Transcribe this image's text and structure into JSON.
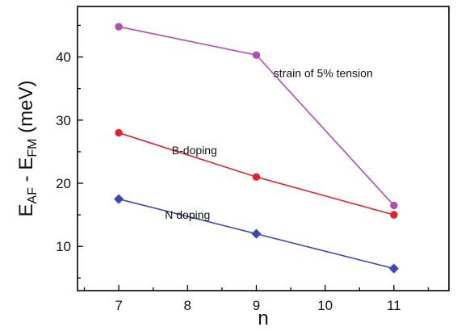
{
  "chart_data": {
    "type": "line",
    "xlabel": "n",
    "ylabel": {
      "base": "E",
      "sub1": "AF",
      "minus": " - E",
      "sub2": "FM",
      "unit": " (meV)"
    },
    "xlim": [
      6.4,
      11.8
    ],
    "ylim": [
      3,
      48
    ],
    "xticks": [
      7,
      8,
      9,
      10,
      11
    ],
    "yticks": [
      10,
      20,
      30,
      40
    ],
    "grid": false,
    "series": [
      {
        "label": "strain of 5% tension",
        "color": "#b44cb4",
        "marker": "circle",
        "x": [
          7,
          9,
          11
        ],
        "y": [
          44.8,
          40.3,
          16.5
        ]
      },
      {
        "label": "B-doping",
        "color": "#e8222d",
        "marker": "circle",
        "x": [
          7,
          9,
          11
        ],
        "y": [
          28.0,
          21.0,
          15.0
        ]
      },
      {
        "label": "N doping",
        "color": "#3a48b0",
        "marker": "diamond",
        "x": [
          7,
          9,
          11
        ],
        "y": [
          17.5,
          12.0,
          6.5
        ]
      }
    ]
  }
}
